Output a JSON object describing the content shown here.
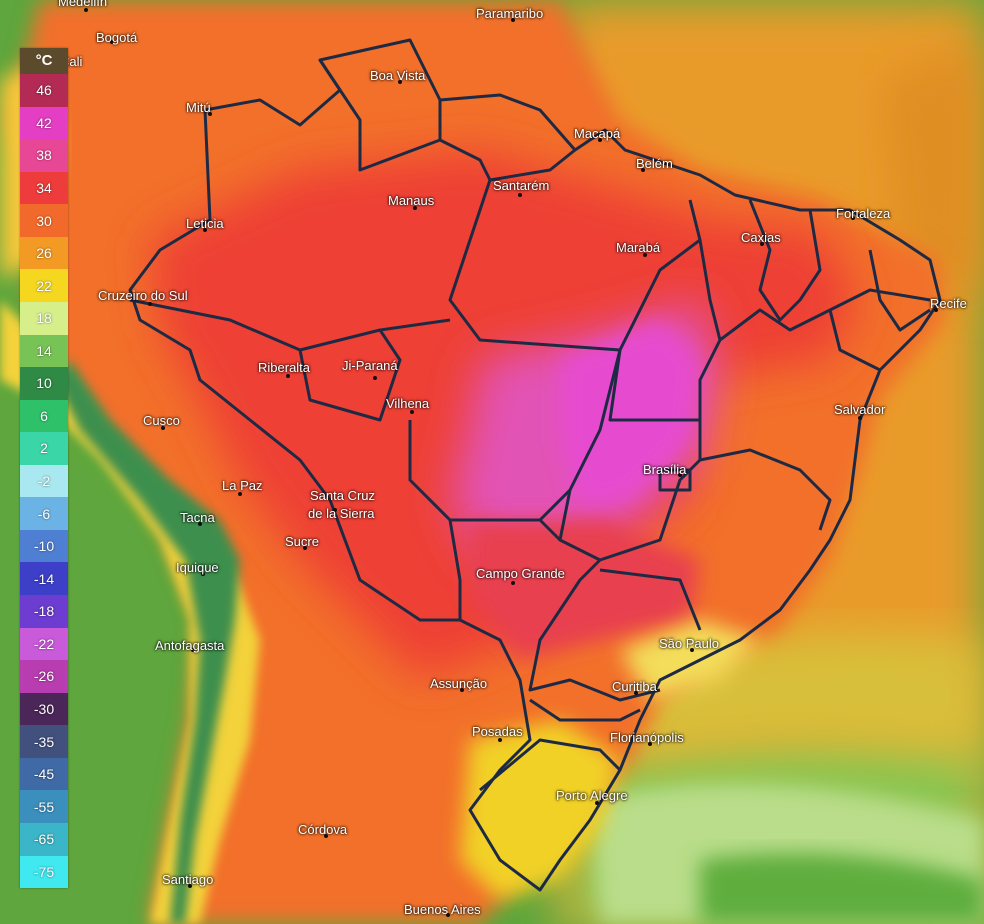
{
  "legend": {
    "unit": "°C",
    "steps": [
      {
        "label": "46",
        "color": "#b32a55"
      },
      {
        "label": "42",
        "color": "#e43ec4"
      },
      {
        "label": "38",
        "color": "#e84796"
      },
      {
        "label": "34",
        "color": "#ee3b3b"
      },
      {
        "label": "30",
        "color": "#f26a2b"
      },
      {
        "label": "26",
        "color": "#f39a24"
      },
      {
        "label": "22",
        "color": "#f5d71f"
      },
      {
        "label": "18",
        "color": "#d7ef8a"
      },
      {
        "label": "14",
        "color": "#78c356"
      },
      {
        "label": "10",
        "color": "#2e8a44"
      },
      {
        "label": "6",
        "color": "#2fc06a"
      },
      {
        "label": "2",
        "color": "#3bd6a7"
      },
      {
        "label": "-2",
        "color": "#a9e8f0"
      },
      {
        "label": "-6",
        "color": "#6ab3e4"
      },
      {
        "label": "-10",
        "color": "#4f7fd3"
      },
      {
        "label": "-14",
        "color": "#3d3fc8"
      },
      {
        "label": "-18",
        "color": "#6c3dd0"
      },
      {
        "label": "-22",
        "color": "#c95ad9"
      },
      {
        "label": "-26",
        "color": "#b73db0"
      },
      {
        "label": "-30",
        "color": "#4b2658"
      },
      {
        "label": "-35",
        "color": "#41507d"
      },
      {
        "label": "-45",
        "color": "#3f6aa6"
      },
      {
        "label": "-55",
        "color": "#3a8fbd"
      },
      {
        "label": "-65",
        "color": "#3bb6c8"
      },
      {
        "label": "-75",
        "color": "#40e8f0"
      }
    ]
  },
  "cities": [
    {
      "id": "medellin",
      "name": "Medellín"
    },
    {
      "id": "bogota",
      "name": "Bogotá"
    },
    {
      "id": "cali",
      "name": "Cali"
    },
    {
      "id": "paramaribo",
      "name": "Paramaribo"
    },
    {
      "id": "boa-vista",
      "name": "Boa Vista"
    },
    {
      "id": "macapa",
      "name": "Macapá"
    },
    {
      "id": "mitu",
      "name": "Mitú"
    },
    {
      "id": "belem",
      "name": "Belém"
    },
    {
      "id": "santarem",
      "name": "Santarém"
    },
    {
      "id": "manaus",
      "name": "Manaus"
    },
    {
      "id": "fortaleza",
      "name": "Fortaleza"
    },
    {
      "id": "caxias",
      "name": "Caxias"
    },
    {
      "id": "maraba",
      "name": "Marabá"
    },
    {
      "id": "leticia",
      "name": "Leticia"
    },
    {
      "id": "cruzeiro",
      "name": "Cruzeiro do Sul"
    },
    {
      "id": "recife",
      "name": "Recife"
    },
    {
      "id": "riberalta",
      "name": "Riberalta"
    },
    {
      "id": "ji-parana",
      "name": "Ji-Paraná"
    },
    {
      "id": "vilhena",
      "name": "Vilhena"
    },
    {
      "id": "salvador",
      "name": "Salvador"
    },
    {
      "id": "cusco",
      "name": "Cusco"
    },
    {
      "id": "brasilia",
      "name": "Brasília"
    },
    {
      "id": "la-paz",
      "name": "La Paz"
    },
    {
      "id": "santa-cruz-1",
      "name": "Santa Cruz"
    },
    {
      "id": "santa-cruz-2",
      "name": "de la Sierra"
    },
    {
      "id": "tacna",
      "name": "Tacna"
    },
    {
      "id": "sucre",
      "name": "Sucre"
    },
    {
      "id": "iquique",
      "name": "Iquique"
    },
    {
      "id": "campo-grande",
      "name": "Campo Grande"
    },
    {
      "id": "antofagasta",
      "name": "Antofagasta"
    },
    {
      "id": "sao-paulo",
      "name": "São Paulo"
    },
    {
      "id": "curitiba",
      "name": "Curitiba"
    },
    {
      "id": "assuncao",
      "name": "Assunção"
    },
    {
      "id": "posadas",
      "name": "Posadas"
    },
    {
      "id": "florianopolis",
      "name": "Florianópolis"
    },
    {
      "id": "porto-alegre",
      "name": "Porto Alegre"
    },
    {
      "id": "cordova",
      "name": "Córdova"
    },
    {
      "id": "santiago",
      "name": "Santiago"
    },
    {
      "id": "buenos-aires",
      "name": "Buenos Aires"
    }
  ]
}
